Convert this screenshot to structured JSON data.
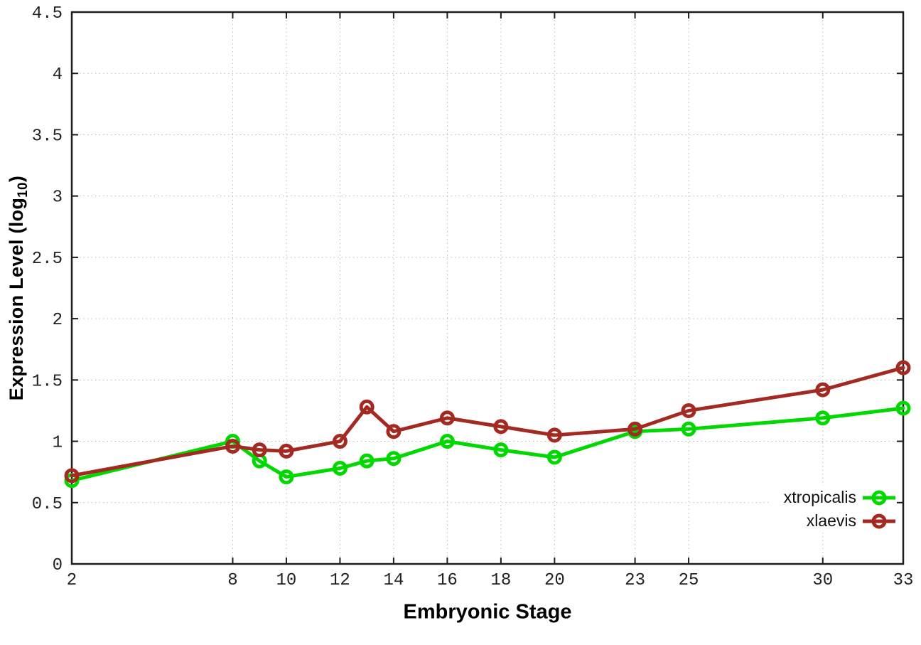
{
  "axes": {
    "xlabel": "Embryonic Stage",
    "ylabel_prefix": "Expression Level (log",
    "ylabel_sub": "10",
    "ylabel_suffix": ")"
  },
  "chart_data": {
    "type": "line",
    "title": "",
    "xlabel": "Embryonic Stage",
    "ylabel": "Expression Level (log10)",
    "x": [
      2,
      8,
      9,
      10,
      12,
      13,
      14,
      16,
      18,
      20,
      23,
      25,
      30,
      33
    ],
    "xlim": [
      2,
      33
    ],
    "ylim": [
      0,
      4.5
    ],
    "xticks": [
      2,
      8,
      10,
      12,
      14,
      16,
      18,
      20,
      23,
      25,
      30,
      33
    ],
    "yticks": [
      0,
      0.5,
      1,
      1.5,
      2,
      2.5,
      3,
      3.5,
      4,
      4.5
    ],
    "grid": true,
    "legend_position": "bottom-right",
    "marker": "open-circle",
    "series": [
      {
        "name": "xtropicalis",
        "color": "#00d800",
        "values": [
          0.68,
          1.0,
          0.84,
          0.71,
          0.78,
          0.84,
          0.86,
          1.0,
          0.93,
          0.87,
          1.08,
          1.1,
          1.19,
          1.27
        ]
      },
      {
        "name": "xlaevis",
        "color": "#a32a22",
        "values": [
          0.72,
          0.96,
          0.93,
          0.92,
          1.0,
          1.28,
          1.08,
          1.19,
          1.12,
          1.05,
          1.1,
          1.25,
          1.42,
          1.6
        ]
      }
    ]
  },
  "colors": {
    "border": "#1c1c1c",
    "grid": "#b9b9b9",
    "tick_label": "#222222"
  }
}
